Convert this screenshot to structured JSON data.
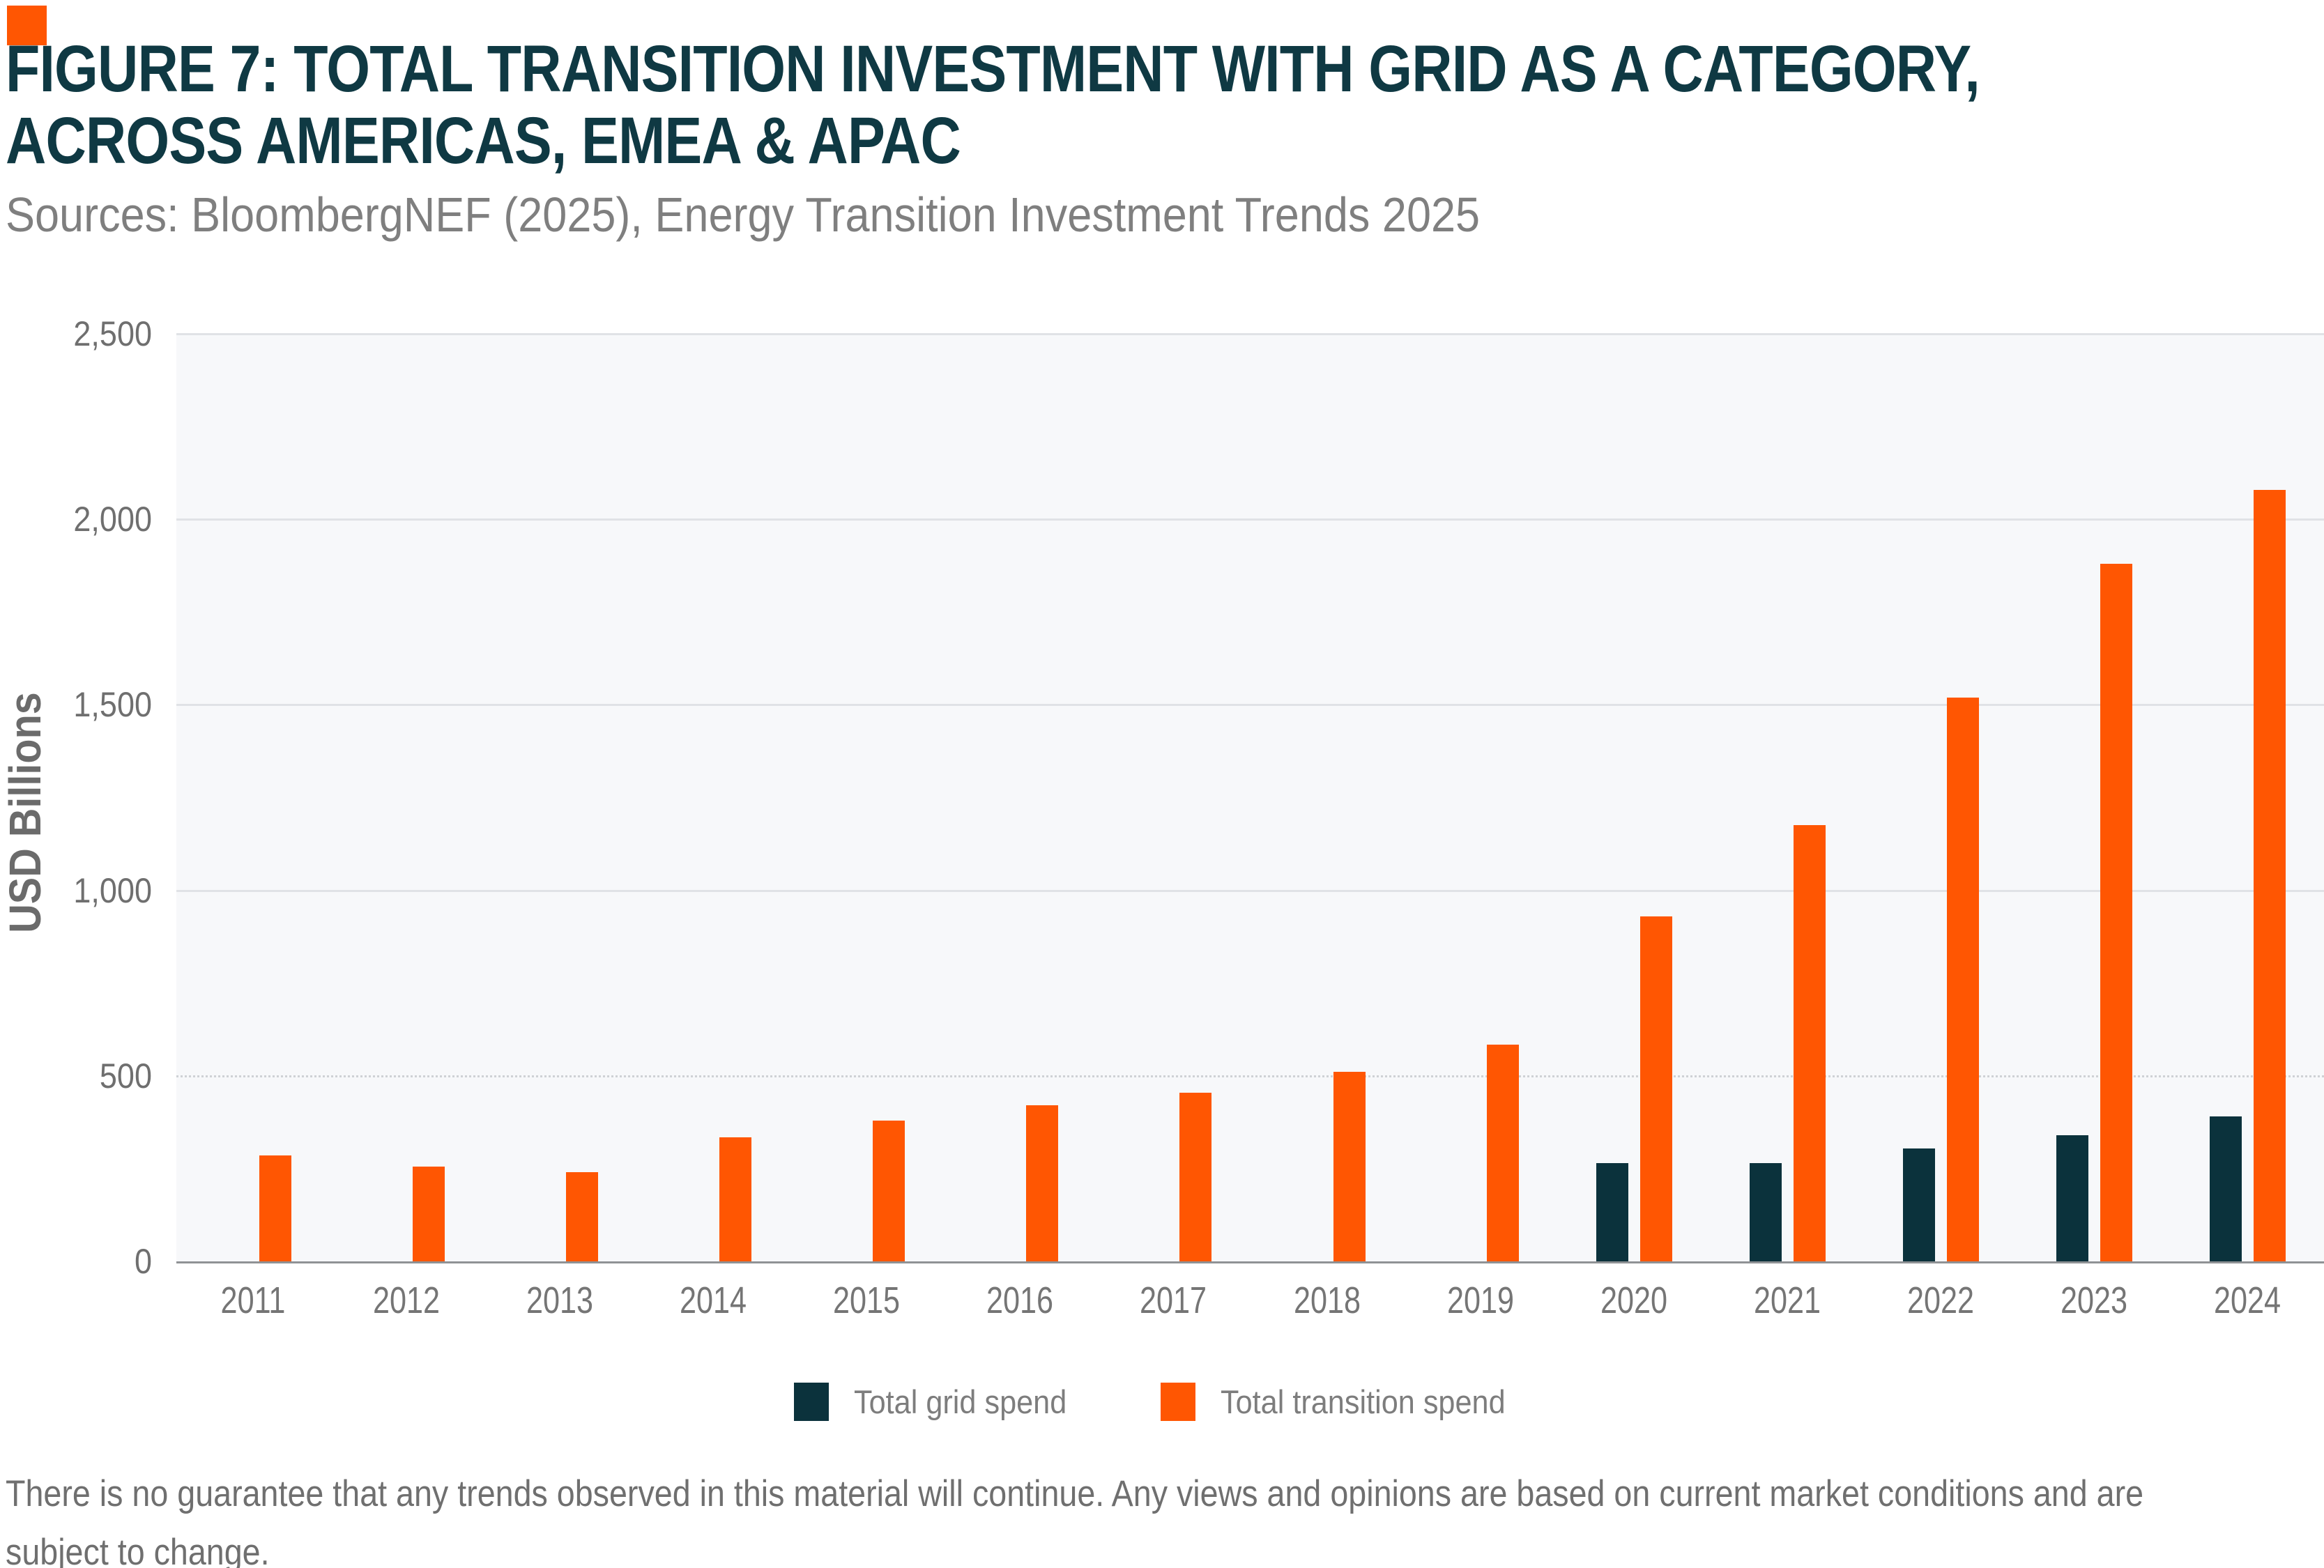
{
  "brand": {
    "accent_color": "#FF5602"
  },
  "header": {
    "title_line1": "FIGURE 7: TOTAL TRANSITION INVESTMENT WITH GRID AS A CATEGORY,",
    "title_line2": "ACROSS AMERICAS, EMEA & APAC",
    "source": "Sources: BloombergNEF (2025), Energy Transition Investment Trends 2025"
  },
  "chart_data": {
    "type": "bar",
    "title": "Total transition investment with grid as a category, across Americas, EMEA & APAC",
    "xlabel": "",
    "ylabel": "USD Billions",
    "ylim": [
      0,
      2500
    ],
    "yticks": [
      {
        "v": 0,
        "label": "0"
      },
      {
        "v": 500,
        "label": "500"
      },
      {
        "v": 1000,
        "label": "1,000"
      },
      {
        "v": 1500,
        "label": "1,500"
      },
      {
        "v": 2000,
        "label": "2,000"
      },
      {
        "v": 2500,
        "label": "2,500"
      }
    ],
    "categories": [
      "2011",
      "2012",
      "2013",
      "2014",
      "2015",
      "2016",
      "2017",
      "2018",
      "2019",
      "2020",
      "2021",
      "2022",
      "2023",
      "2024"
    ],
    "series": [
      {
        "name": "Total grid spend",
        "color": "#0B323C",
        "values": [
          null,
          null,
          null,
          null,
          null,
          null,
          null,
          null,
          null,
          265,
          265,
          305,
          340,
          390
        ]
      },
      {
        "name": "Total transition spend",
        "color": "#FF5602",
        "values": [
          285,
          255,
          240,
          335,
          380,
          420,
          455,
          510,
          585,
          930,
          1175,
          1520,
          1880,
          2080
        ]
      }
    ],
    "grid": "horizontal",
    "legend_position": "bottom",
    "plot_background": "#F7F8FA",
    "gridline_color": "#E0E2E6",
    "axis_color": "#8F9295"
  },
  "footer": {
    "line1": "There is no guarantee that any trends observed in this material will continue. Any views and opinions are based on current market conditions and are",
    "line2": "subject to change."
  }
}
